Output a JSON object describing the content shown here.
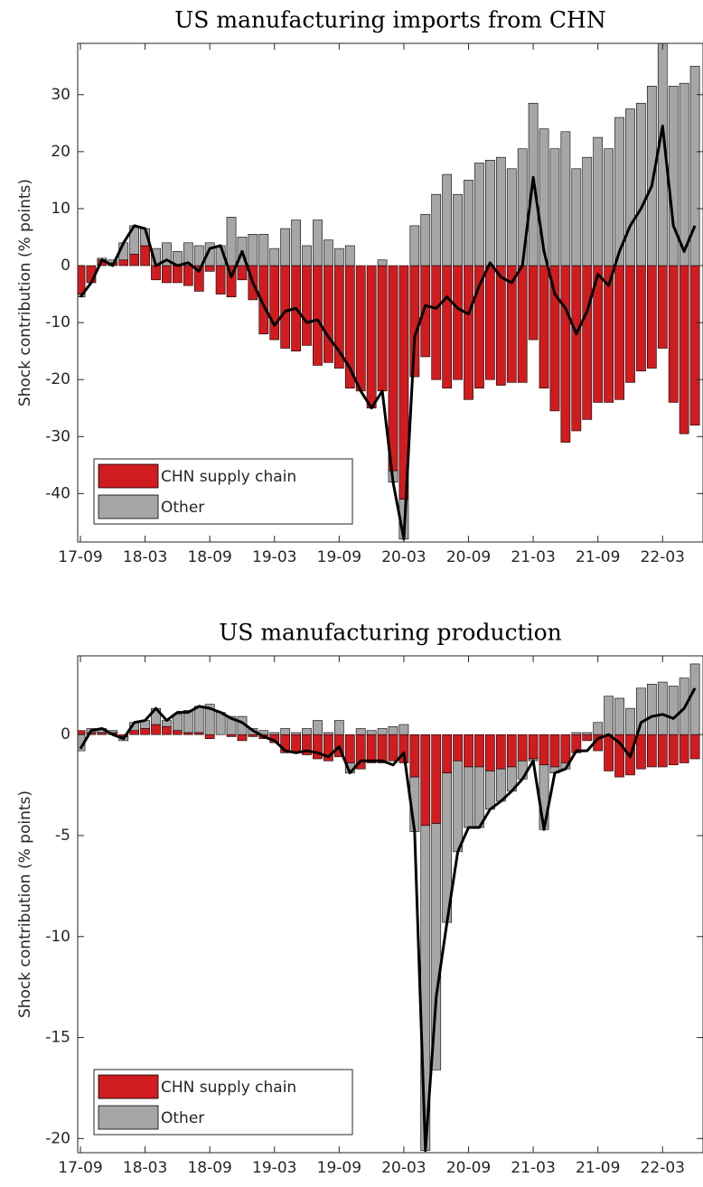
{
  "chart_data": [
    {
      "type": "bar",
      "stacked": true,
      "title": "US manufacturing imports from CHN",
      "ylabel": "Shock contribution (% points)",
      "categories": [
        "17-09",
        null,
        null,
        null,
        null,
        null,
        "18-03",
        null,
        null,
        null,
        null,
        null,
        "18-09",
        null,
        null,
        null,
        null,
        null,
        "19-03",
        null,
        null,
        null,
        null,
        null,
        "19-09",
        null,
        null,
        null,
        null,
        null,
        "20-03",
        null,
        null,
        null,
        null,
        null,
        "20-09",
        null,
        null,
        null,
        null,
        null,
        "21-03",
        null,
        null,
        null,
        null,
        null,
        "21-09",
        null,
        null,
        null,
        null,
        null,
        "22-03",
        null,
        null,
        null
      ],
      "series": [
        {
          "name": "CHN supply chain",
          "color": "#d01c1f",
          "values": [
            -5,
            -3,
            1,
            0.5,
            1,
            2,
            3.5,
            -2.5,
            -3,
            -3,
            -3.5,
            -4.5,
            -1,
            -5,
            -5.5,
            -2.5,
            -6,
            -12,
            -13,
            -14.5,
            -15,
            -14,
            -17.5,
            -17,
            -18,
            -21.5,
            -22,
            -25,
            -22,
            -36,
            -41,
            -19.5,
            -16,
            -20,
            -21.5,
            -20,
            -23.5,
            -21.5,
            -20,
            -21,
            -20.5,
            -20.5,
            -13,
            -21.5,
            -25.5,
            -31,
            -29,
            -27,
            -24,
            -24,
            -23.5,
            -20.5,
            -18.5,
            -18,
            -14.5,
            -24,
            -29.5,
            -28
          ]
        },
        {
          "name": "Other",
          "color": "#a6a6a6",
          "values": [
            -0.5,
            0,
            0.3,
            0.5,
            3,
            5,
            3,
            3,
            4,
            2.5,
            4,
            3.5,
            4,
            3.5,
            8.5,
            5,
            5.5,
            5.5,
            3,
            6.5,
            8,
            3.5,
            8,
            4.5,
            3,
            3.5,
            0,
            0,
            1,
            -2,
            -7,
            7,
            9,
            12.5,
            16,
            12.5,
            15,
            18,
            18.5,
            19,
            17,
            20.5,
            28.5,
            24,
            20.5,
            23.5,
            17,
            19,
            22.5,
            20.5,
            26,
            27.5,
            28.5,
            31.5,
            39,
            31.5,
            32,
            35
          ]
        }
      ],
      "line": {
        "color": "#000000",
        "values": [
          -5.5,
          -3,
          1,
          0,
          4,
          7,
          6.5,
          0,
          1,
          0,
          0.5,
          -1,
          3,
          3.5,
          -2,
          2.5,
          -3,
          -7,
          -10.5,
          -8,
          -7.5,
          -10,
          -9.5,
          -12.5,
          -15,
          -18,
          -22,
          -25,
          -22,
          -38,
          -48,
          -12.5,
          -7,
          -7.5,
          -5.5,
          -7.5,
          -8.5,
          -3.5,
          0.5,
          -2,
          -3,
          0,
          15.5,
          2.5,
          -5,
          -7.5,
          -12,
          -8,
          -1.5,
          -3.5,
          2.5,
          7,
          10,
          14,
          24.5,
          7,
          2.5,
          7
        ]
      },
      "ylim": [
        -48.5,
        39
      ],
      "yticks": [
        -40,
        -30,
        -20,
        -10,
        0,
        10,
        20,
        30
      ],
      "legend": "lower left"
    },
    {
      "type": "bar",
      "stacked": true,
      "title": "US manufacturing production",
      "ylabel": "Shock contribution (% points)",
      "categories": [
        "17-09",
        null,
        null,
        null,
        null,
        null,
        "18-03",
        null,
        null,
        null,
        null,
        null,
        "18-09",
        null,
        null,
        null,
        null,
        null,
        "19-03",
        null,
        null,
        null,
        null,
        null,
        "19-09",
        null,
        null,
        null,
        null,
        null,
        "20-03",
        null,
        null,
        null,
        null,
        null,
        "20-09",
        null,
        null,
        null,
        null,
        null,
        "21-03",
        null,
        null,
        null,
        null,
        null,
        "21-09",
        null,
        null,
        null,
        null,
        null,
        "22-03",
        null,
        null,
        null
      ],
      "series": [
        {
          "name": "CHN supply chain",
          "color": "#d01c1f",
          "values": [
            0.2,
            0.1,
            0.1,
            0.1,
            -0.1,
            0.2,
            0.3,
            0.5,
            0.4,
            0.2,
            0.1,
            0.1,
            -0.2,
            0,
            -0.1,
            -0.3,
            -0.1,
            -0.2,
            -0.4,
            -0.9,
            -0.9,
            -1,
            -1.2,
            -1.3,
            -1.1,
            -1.4,
            -1.7,
            -1.4,
            -1.4,
            -1.3,
            -1.4,
            -2.1,
            -4.5,
            -4.4,
            -1.9,
            -1.3,
            -1.6,
            -1.6,
            -1.8,
            -1.7,
            -1.6,
            -1.3,
            -1.2,
            -1.5,
            -1.6,
            -1.4,
            -0.9,
            -0.3,
            -0.8,
            -1.8,
            -2.1,
            -2,
            -1.7,
            -1.6,
            -1.6,
            -1.5,
            -1.4,
            -1.2
          ]
        },
        {
          "name": "Other",
          "color": "#a6a6a6",
          "values": [
            -0.8,
            0.2,
            0.2,
            0.1,
            -0.2,
            0.4,
            0.4,
            0.8,
            0.3,
            0.8,
            1.1,
            1.3,
            1.5,
            1.1,
            0.9,
            0.9,
            0.3,
            0.2,
            0.1,
            0.3,
            0.1,
            0.3,
            0.7,
            0.1,
            0.7,
            -0.5,
            0.3,
            0.2,
            0.3,
            0.4,
            0.5,
            -2.7,
            -16.1,
            -12.2,
            -7.4,
            -4.5,
            -3,
            -3,
            -1.9,
            -1.6,
            -1.2,
            -0.9,
            -0.1,
            -3.2,
            -0.3,
            -0.3,
            0.1,
            0.1,
            0.6,
            1.9,
            1.8,
            1.3,
            2.3,
            2.5,
            2.6,
            2.4,
            2.8,
            3.5
          ]
        }
      ],
      "line": {
        "color": "#000000",
        "values": [
          -0.7,
          0.2,
          0.3,
          0,
          -0.2,
          0.6,
          0.7,
          1.3,
          0.7,
          1.1,
          1.1,
          1.4,
          1.3,
          1.1,
          0.8,
          0.6,
          0.2,
          -0.1,
          -0.3,
          -0.8,
          -0.9,
          -0.8,
          -0.9,
          -1.1,
          -0.6,
          -1.9,
          -1.3,
          -1.3,
          -1.3,
          -1.5,
          -0.9,
          -4.8,
          -20.6,
          -13,
          -9.3,
          -5.8,
          -4.6,
          -4.6,
          -3.7,
          -3.3,
          -2.8,
          -2.2,
          -1.3,
          -4.7,
          -1.9,
          -1.7,
          -0.8,
          -0.8,
          -0.2,
          0,
          -0.4,
          -1.1,
          0.6,
          0.9,
          1,
          0.8,
          1.3,
          2.3
        ]
      },
      "ylim": [
        -20.7,
        3.9
      ],
      "yticks": [
        -20,
        -15,
        -10,
        -5,
        0
      ],
      "legend": "lower left"
    }
  ]
}
